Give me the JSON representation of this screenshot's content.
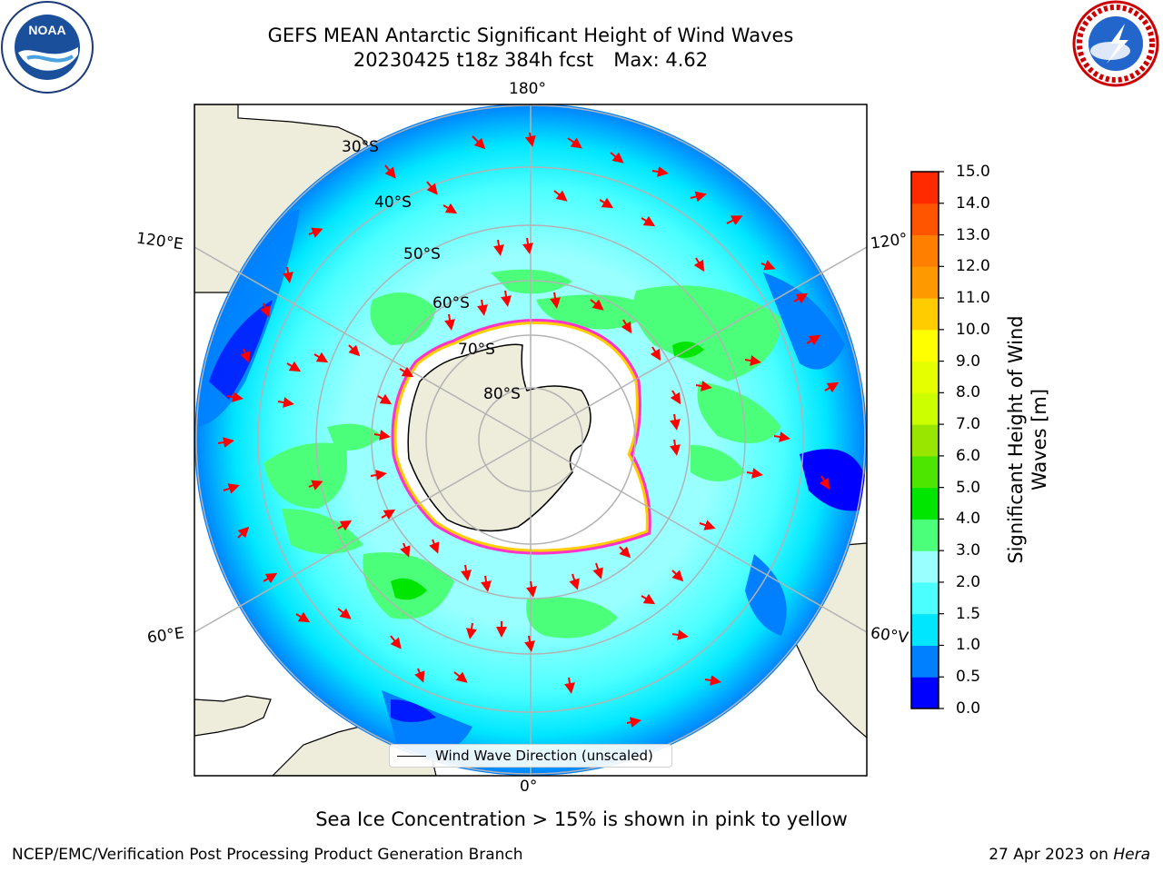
{
  "header": {
    "title_line1": "GEFS MEAN Antarctic Significant Height of Wind Waves",
    "title_line2": "20230425 t18z 384h fcst",
    "title_max": "Max: 4.62"
  },
  "map": {
    "projection": "south-polar-stereographic",
    "lon_labels": {
      "top": "180°",
      "bottom": "0°",
      "left_upper": "120°E",
      "right_upper": "120°",
      "left_lower": "60°E",
      "right_lower": "60°V"
    },
    "lat_labels": [
      "30°S",
      "40°S",
      "50°S",
      "60°S",
      "70°S",
      "80°S"
    ],
    "land_color": "#eeecda",
    "ice_edge_colors": [
      "#ff33cc",
      "#ffcc00"
    ]
  },
  "legend": {
    "label": "Wind Wave Direction (unscaled)"
  },
  "colorbar": {
    "label": "Significant Height of Wind Waves [m]",
    "label_line1": "Significant Height of Wind",
    "label_line2": "Waves [m]",
    "ticks": [
      "15.0",
      "14.0",
      "13.0",
      "12.0",
      "11.0",
      "10.0",
      "9.0",
      "8.0",
      "7.0",
      "6.0",
      "5.0",
      "4.0",
      "3.0",
      "2.0",
      "1.5",
      "1.0",
      "0.5",
      "0.0"
    ],
    "colors_bottom_to_top": [
      "#0000ff",
      "#0080ff",
      "#00e6ff",
      "#4cffff",
      "#99ffff",
      "#4cff7a",
      "#00e600",
      "#4ce600",
      "#99e600",
      "#ccff00",
      "#e6ff00",
      "#ffff00",
      "#ffcc00",
      "#ff9900",
      "#ff8000",
      "#ff5500",
      "#ff2a00"
    ]
  },
  "footer": {
    "note": "Sea Ice Concentration > 15% is shown in pink to yellow",
    "credit": "NCEP/EMC/Verification Post Processing Product Generation Branch",
    "date": "27 Apr 2023 on",
    "host": "Hera"
  },
  "logos": {
    "left": "NOAA",
    "right": "NATIONAL WEATHER SERVICE"
  }
}
